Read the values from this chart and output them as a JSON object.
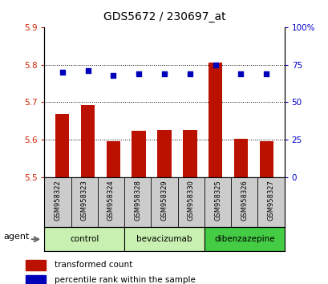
{
  "title": "GDS5672 / 230697_at",
  "samples": [
    "GSM958322",
    "GSM958323",
    "GSM958324",
    "GSM958328",
    "GSM958329",
    "GSM958330",
    "GSM958325",
    "GSM958326",
    "GSM958327"
  ],
  "bar_values": [
    5.668,
    5.693,
    5.597,
    5.625,
    5.627,
    5.627,
    5.805,
    5.602,
    5.597
  ],
  "bar_base": 5.5,
  "percentile_values": [
    70,
    71,
    68,
    69,
    69,
    69,
    75,
    69,
    69
  ],
  "ylim_left": [
    5.5,
    5.9
  ],
  "ylim_right": [
    0,
    100
  ],
  "yticks_left": [
    5.5,
    5.6,
    5.7,
    5.8,
    5.9
  ],
  "yticks_right": [
    0,
    25,
    50,
    75,
    100
  ],
  "ytick_labels_right": [
    "0",
    "25",
    "50",
    "75",
    "100%"
  ],
  "groups": [
    {
      "label": "control",
      "indices": [
        0,
        1,
        2
      ],
      "color": "#c8f0b0"
    },
    {
      "label": "bevacizumab",
      "indices": [
        3,
        4,
        5
      ],
      "color": "#c8f0b0"
    },
    {
      "label": "dibenzazepine",
      "indices": [
        6,
        7,
        8
      ],
      "color": "#44cc44"
    }
  ],
  "bar_color": "#bb1100",
  "dot_color": "#0000bb",
  "label_color_left": "#cc2200",
  "label_color_right": "#0000cc",
  "agent_label": "agent",
  "legend_bar_label": "transformed count",
  "legend_dot_label": "percentile rank within the sample",
  "tick_area_color": "#cccccc",
  "separator_color": "#888888"
}
